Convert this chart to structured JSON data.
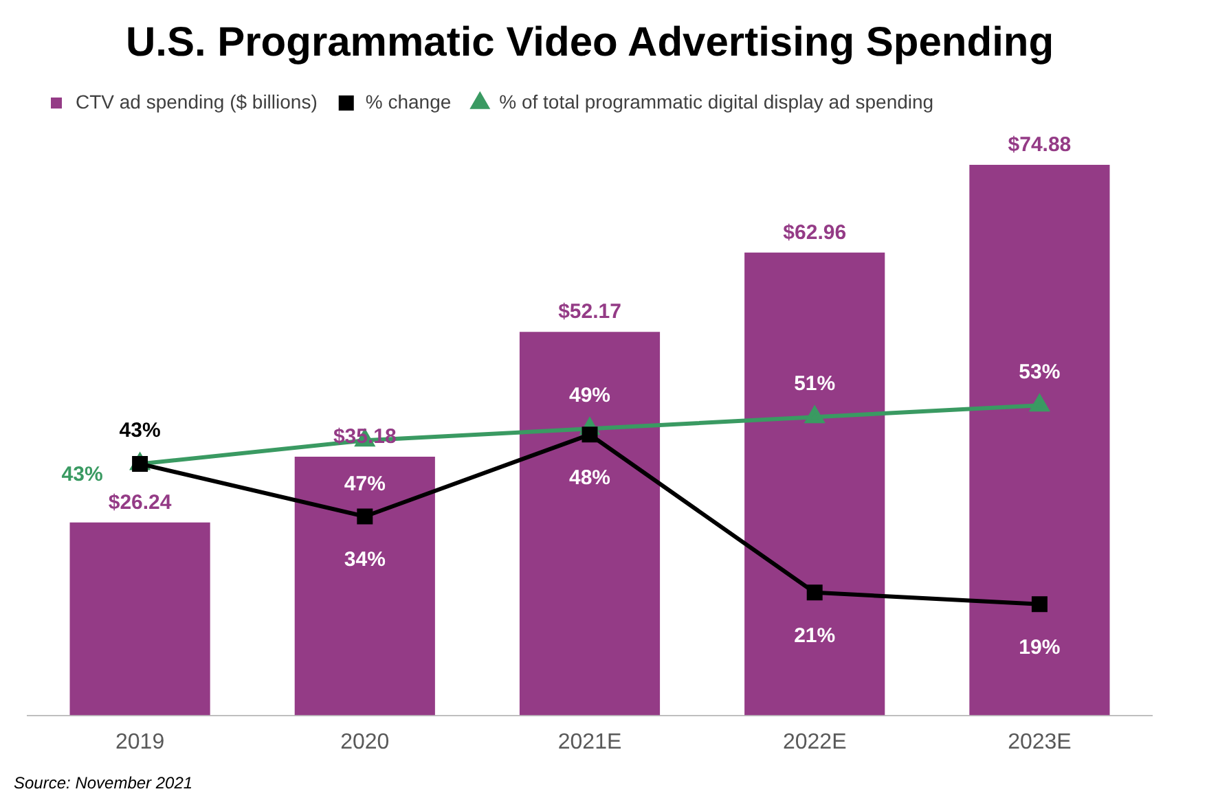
{
  "chart_data": {
    "type": "bar",
    "title": "U.S. Programmatic Video Advertising Spending",
    "categories": [
      "2019",
      "2020",
      "2021E",
      "2022E",
      "2023E"
    ],
    "series": [
      {
        "name": "CTV ad spending ($ billions)",
        "color": "#943b86",
        "values": [
          26.24,
          35.18,
          52.17,
          62.96,
          74.88
        ],
        "value_labels": [
          "$26.24",
          "$35.18",
          "$52.17",
          "$62.96",
          "$74.88"
        ]
      },
      {
        "name": "% change",
        "type": "line",
        "axis": "y2",
        "color": "#000000",
        "marker": "square",
        "values": [
          43,
          34,
          48,
          21,
          19
        ],
        "value_labels": [
          "43%",
          "34%",
          "48%",
          "21%",
          "19%"
        ]
      },
      {
        "name": "% of total programmatic digital display ad spending",
        "type": "line",
        "axis": "y2",
        "color": "#3a9a62",
        "marker": "triangle",
        "values": [
          43,
          47,
          49,
          51,
          53
        ],
        "value_labels": [
          "43%",
          "47%",
          "49%",
          "51%",
          "53%"
        ]
      }
    ],
    "tick_labels": "x",
    "grid": false,
    "legend": "top left",
    "line_style": "solid",
    "annotations": [
      "Source: November 2021"
    ]
  }
}
